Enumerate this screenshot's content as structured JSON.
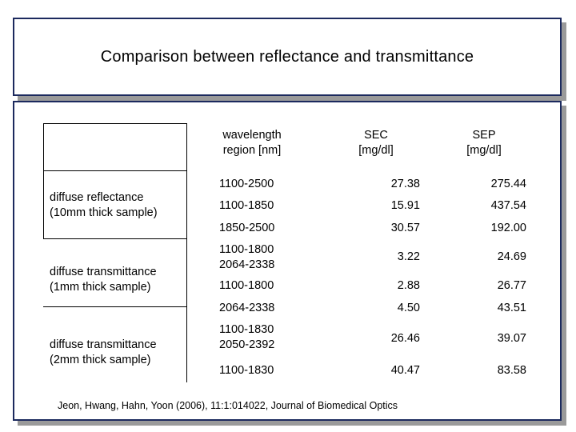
{
  "slide": {
    "title": "Comparison between reflectance and transmittance",
    "citation": "Jeon, Hwang, Hahn, Yoon (2006), 11:1:014022, Journal of Biomedical Optics"
  },
  "table": {
    "headers": {
      "wavelength": [
        "wavelength",
        "region [nm]"
      ],
      "sec": [
        "SEC",
        "[mg/dl]"
      ],
      "sep": [
        "SEP",
        "[mg/dl]"
      ]
    },
    "groups": [
      {
        "label": [
          "diffuse reflectance",
          "(10mm thick sample)"
        ]
      },
      {
        "label": [
          "diffuse transmittance",
          "(1mm thick sample)"
        ]
      },
      {
        "label": [
          "diffuse transmittance",
          "(2mm thick sample)"
        ]
      }
    ],
    "rows": [
      {
        "region": [
          "1100-2500"
        ],
        "sec": "27.38",
        "sep": "275.44"
      },
      {
        "region": [
          "1100-1850"
        ],
        "sec": "15.91",
        "sep": "437.54"
      },
      {
        "region": [
          "1850-2500"
        ],
        "sec": "30.57",
        "sep": "192.00"
      },
      {
        "region": [
          "1100-1800",
          "2064-2338"
        ],
        "sec": "3.22",
        "sep": "24.69"
      },
      {
        "region": [
          "1100-1800"
        ],
        "sec": "2.88",
        "sep": "26.77"
      },
      {
        "region": [
          "2064-2338"
        ],
        "sec": "4.50",
        "sep": "43.51"
      },
      {
        "region": [
          "1100-1830",
          "2050-2392"
        ],
        "sec": "26.46",
        "sep": "39.07"
      },
      {
        "region": [
          "1100-1830"
        ],
        "sec": "40.47",
        "sep": "83.58"
      }
    ]
  }
}
